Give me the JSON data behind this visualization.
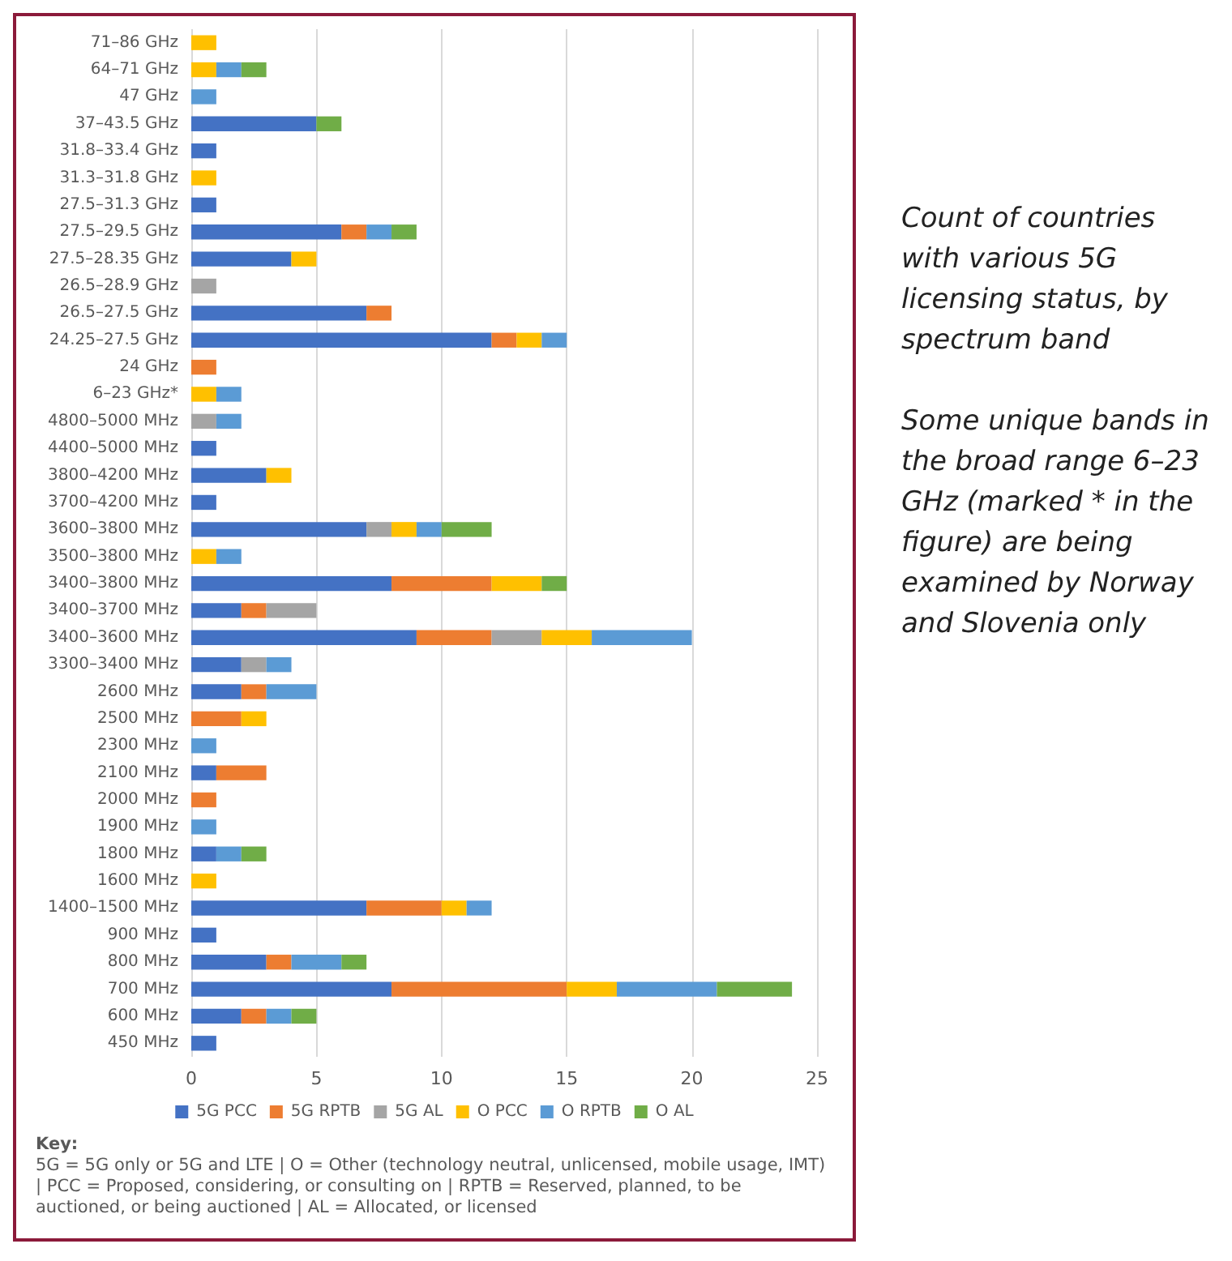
{
  "chart_data": {
    "type": "bar",
    "orientation": "horizontal",
    "stacked": true,
    "categories": [
      "71–86 GHz",
      "64–71 GHz",
      "47 GHz",
      "37–43.5 GHz",
      "31.8–33.4 GHz",
      "31.3–31.8 GHz",
      "27.5–31.3 GHz",
      "27.5–29.5 GHz",
      "27.5–28.35 GHz",
      "26.5–28.9 GHz",
      "26.5–27.5 GHz",
      "24.25–27.5 GHz",
      "24 GHz",
      "6–23 GHz*",
      "4800–5000 MHz",
      "4400–5000 MHz",
      "3800–4200 MHz",
      "3700–4200 MHz",
      "3600–3800 MHz",
      "3500–3800 MHz",
      "3400–3800 MHz",
      "3400–3700 MHz",
      "3400–3600 MHz",
      "3300–3400 MHz",
      "2600 MHz",
      "2500 MHz",
      "2300 MHz",
      "2100 MHz",
      "2000 MHz",
      "1900 MHz",
      "1800 MHz",
      "1600 MHz",
      "1400–1500 MHz",
      "900 MHz",
      "800 MHz",
      "700 MHz",
      "600 MHz",
      "450 MHz"
    ],
    "series": [
      {
        "name": "5G PCC",
        "color": "#4472c4",
        "values": [
          null,
          null,
          null,
          5,
          1,
          null,
          1,
          6,
          4,
          null,
          7,
          12,
          null,
          null,
          null,
          1,
          3,
          1,
          7,
          null,
          8,
          2,
          9,
          2,
          2,
          null,
          null,
          1,
          null,
          null,
          1,
          null,
          7,
          1,
          3,
          8,
          2,
          1
        ]
      },
      {
        "name": "5G RPTB",
        "color": "#ed7d31",
        "values": [
          null,
          null,
          null,
          null,
          null,
          null,
          null,
          1,
          null,
          null,
          1,
          1,
          1,
          null,
          null,
          null,
          null,
          null,
          null,
          null,
          4,
          1,
          3,
          null,
          1,
          2,
          null,
          2,
          1,
          null,
          null,
          null,
          3,
          null,
          1,
          7,
          1,
          null
        ]
      },
      {
        "name": "5G AL",
        "color": "#a5a5a5",
        "values": [
          null,
          null,
          null,
          null,
          null,
          null,
          null,
          null,
          null,
          1,
          null,
          null,
          null,
          null,
          1,
          null,
          null,
          null,
          1,
          null,
          null,
          2,
          2,
          1,
          null,
          null,
          null,
          null,
          null,
          null,
          null,
          null,
          null,
          null,
          null,
          null,
          null,
          null
        ]
      },
      {
        "name": "O PCC",
        "color": "#ffc000",
        "values": [
          1,
          1,
          null,
          null,
          null,
          1,
          null,
          null,
          1,
          null,
          null,
          1,
          null,
          1,
          null,
          null,
          1,
          null,
          1,
          1,
          2,
          null,
          2,
          null,
          null,
          1,
          null,
          null,
          null,
          null,
          null,
          1,
          1,
          null,
          null,
          2,
          null,
          null
        ]
      },
      {
        "name": "O RPTB",
        "color": "#5b9bd5",
        "values": [
          null,
          1,
          1,
          null,
          null,
          null,
          null,
          1,
          null,
          null,
          null,
          1,
          null,
          1,
          1,
          null,
          null,
          null,
          1,
          1,
          null,
          null,
          4,
          1,
          2,
          null,
          1,
          null,
          null,
          1,
          1,
          null,
          1,
          null,
          2,
          4,
          1,
          null
        ]
      },
      {
        "name": "O AL",
        "color": "#70ad47",
        "values": [
          null,
          1,
          null,
          1,
          null,
          null,
          null,
          1,
          null,
          null,
          null,
          null,
          null,
          null,
          null,
          null,
          null,
          null,
          2,
          null,
          1,
          null,
          null,
          null,
          null,
          null,
          null,
          null,
          null,
          null,
          1,
          null,
          null,
          null,
          1,
          3,
          1,
          null
        ]
      }
    ],
    "xlim": [
      0,
      25
    ],
    "xticks": [
      0,
      5,
      10,
      15,
      20,
      25
    ],
    "grid": "x",
    "legend": "bottom",
    "annotations": [
      "Count of countries with various 5G licensing status, by spectrum band",
      "Some unique bands in the broad range 6–23 GHz (marked * in the figure) are being examined by Norway and Slovenia only",
      "Key:\n5G = 5G only or 5G and LTE | O = Other (technology neutral, unlicensed, mobile usage, IMT) | PCC = Proposed, considering, or consulting on | RPTB = Reserved, planned, to be auctioned, or being auctioned | AL = Allocated, or licensed"
    ]
  }
}
